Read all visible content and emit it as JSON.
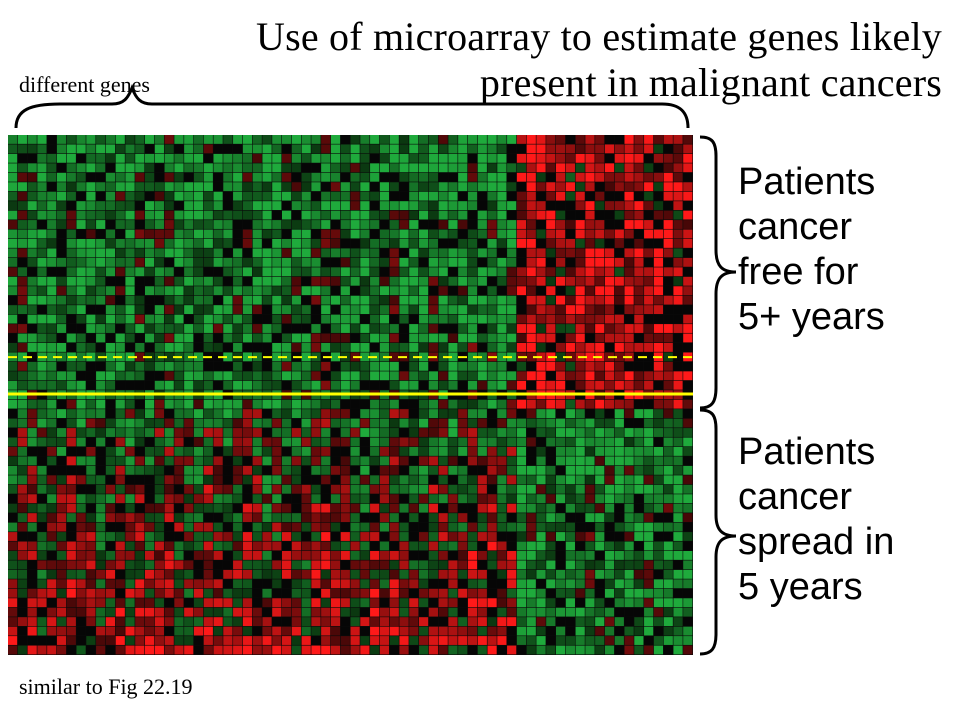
{
  "title": {
    "line1": "Use of microarray to estimate genes likely",
    "line2": "present in malignant cancers"
  },
  "genes_label": "different genes",
  "groups": [
    {
      "lines": [
        "Patients",
        "cancer",
        "free for",
        "5+ years"
      ]
    },
    {
      "lines": [
        "Patients",
        "cancer",
        "spread in",
        "5 years"
      ]
    }
  ],
  "footnote": "similar to Fig 22.19",
  "heatmap": {
    "columns": 70,
    "rows": 55,
    "good_prognosis_rows": 29,
    "separator_color": "#ffff00",
    "colors": {
      "green": "#1fa33a",
      "red": "#ff1a1a",
      "black": "#000000"
    }
  }
}
